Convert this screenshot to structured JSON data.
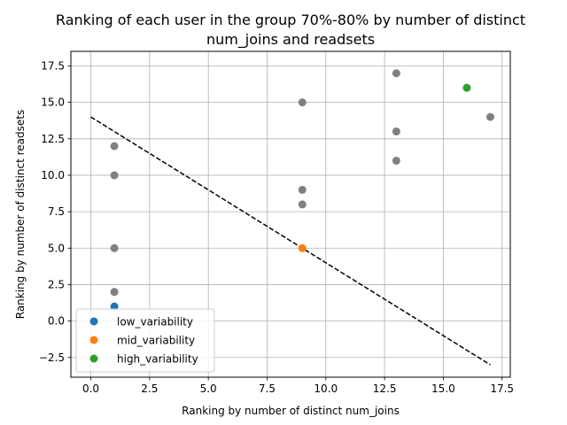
{
  "chart_data": {
    "type": "scatter",
    "title_lines": [
      "Ranking of each user in the group 70%-80% by number of distinct",
      "num_joins and readsets"
    ],
    "xlabel": "Ranking by number of distinct num_joins",
    "ylabel": "Ranking by number of distinct readsets",
    "xlim": [
      -0.85,
      17.85
    ],
    "ylim": [
      -3.85,
      18.5
    ],
    "xticks": [
      0.0,
      2.5,
      5.0,
      7.5,
      10.0,
      12.5,
      15.0,
      17.5
    ],
    "yticks": [
      -2.5,
      0.0,
      2.5,
      5.0,
      7.5,
      10.0,
      12.5,
      15.0,
      17.5
    ],
    "xtick_labels": [
      "0.0",
      "2.5",
      "5.0",
      "7.5",
      "10.0",
      "12.5",
      "15.0",
      "17.5"
    ],
    "ytick_labels": [
      "−2.5",
      "0.0",
      "2.5",
      "5.0",
      "7.5",
      "10.0",
      "12.5",
      "15.0",
      "17.5"
    ],
    "grid": true,
    "legend_position": "lower-left",
    "background_points": {
      "color": "#808080",
      "points": [
        [
          1,
          12
        ],
        [
          1,
          10
        ],
        [
          1,
          5
        ],
        [
          1,
          2
        ],
        [
          9,
          15
        ],
        [
          9,
          9
        ],
        [
          9,
          8
        ],
        [
          13,
          17
        ],
        [
          13,
          13
        ],
        [
          13,
          11
        ],
        [
          17,
          14
        ]
      ]
    },
    "series": [
      {
        "name": "low_variability",
        "color": "#1f77b4",
        "points": [
          [
            1,
            1
          ]
        ]
      },
      {
        "name": "mid_variability",
        "color": "#ff7f0e",
        "points": [
          [
            9,
            5
          ]
        ]
      },
      {
        "name": "high_variability",
        "color": "#2ca02c",
        "points": [
          [
            16,
            16
          ]
        ]
      }
    ],
    "trend_line": {
      "color": "#000000",
      "style": "dashed",
      "points": [
        [
          0,
          14
        ],
        [
          17,
          -3
        ]
      ]
    }
  }
}
